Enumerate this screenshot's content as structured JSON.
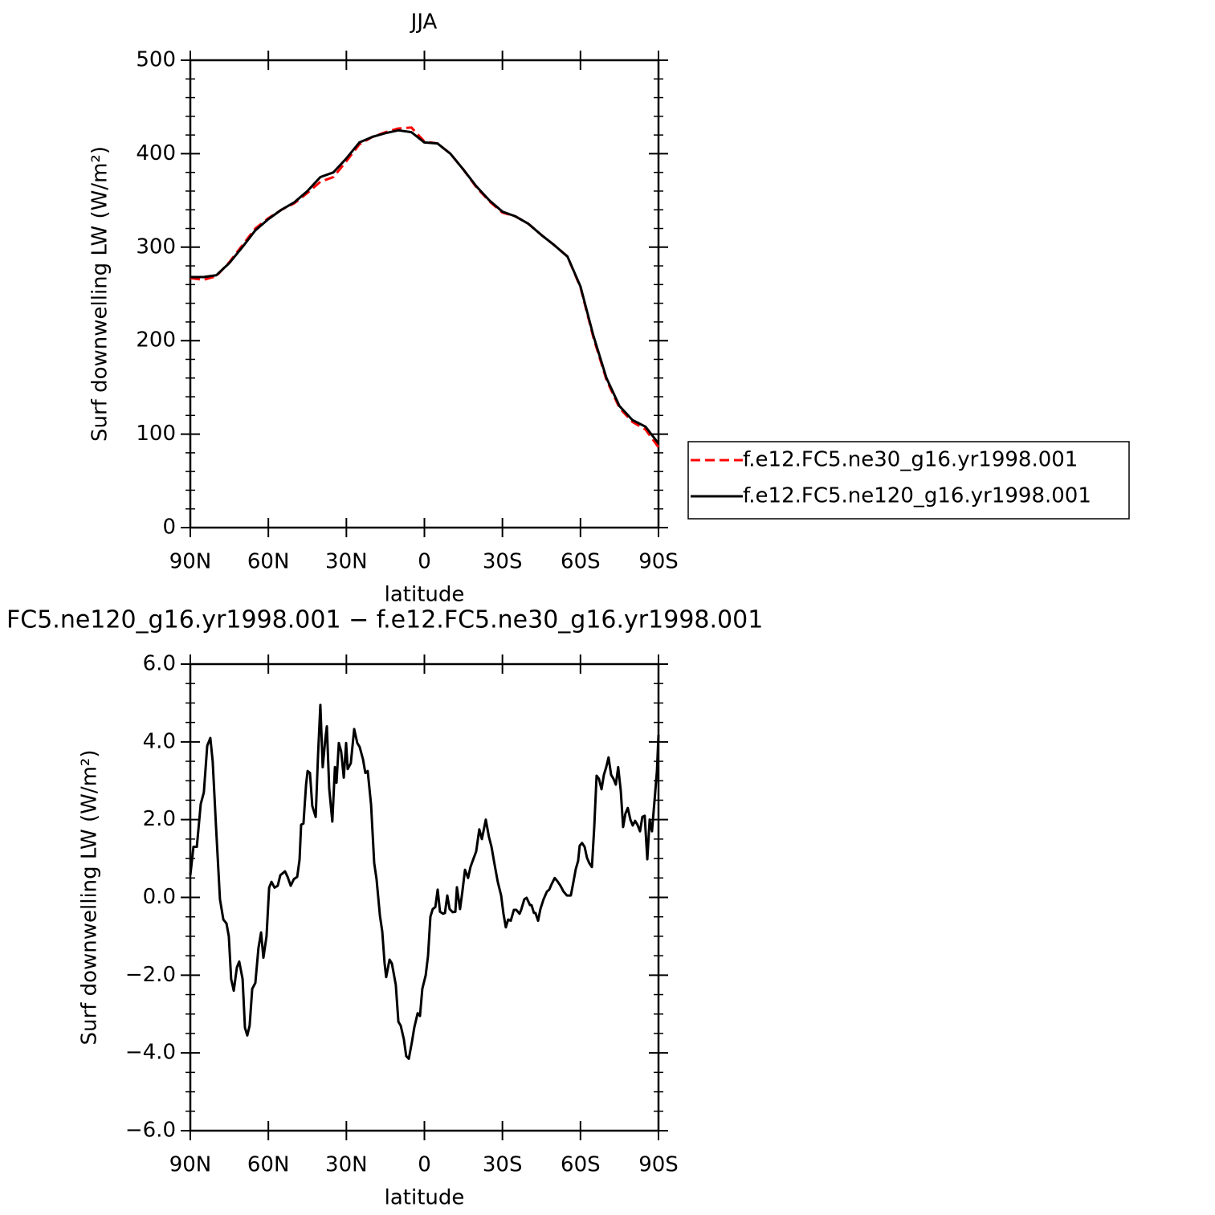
{
  "chart_data": [
    {
      "type": "line",
      "title": "JJA",
      "xlabel": "latitude",
      "ylabel": "Surf downwelling LW (W/m²)",
      "x": [
        90,
        85,
        80,
        75,
        70,
        65,
        60,
        55,
        50,
        45,
        40,
        35,
        30,
        25,
        20,
        15,
        10,
        5,
        0,
        -5,
        -10,
        -15,
        -20,
        -25,
        -30,
        -35,
        -40,
        -45,
        -50,
        -55,
        -60,
        -65,
        -70,
        -75,
        -80,
        -85,
        -90
      ],
      "xlim": [
        90,
        -90
      ],
      "xticks": [
        {
          "value": 90,
          "label": "90N"
        },
        {
          "value": 60,
          "label": "60N"
        },
        {
          "value": 30,
          "label": "30N"
        },
        0,
        {
          "value": -30,
          "label": "30S"
        },
        {
          "value": -60,
          "label": "60S"
        },
        {
          "value": -90,
          "label": "90S"
        }
      ],
      "ylim": [
        0,
        500
      ],
      "yticks": [
        0,
        100,
        200,
        300,
        400,
        500
      ],
      "yminorticks": [
        20,
        40,
        60,
        80,
        120,
        140,
        160,
        180,
        220,
        240,
        260,
        280,
        320,
        340,
        360,
        380,
        420,
        440,
        460,
        480
      ],
      "legend": "right",
      "series": [
        {
          "name": "f.e12.FC5.ne30_g16.yr1998.001",
          "color": "#ff0000",
          "dash": "dashed",
          "values": [
            267,
            265,
            269,
            284,
            302,
            320,
            331,
            340,
            347,
            358,
            370,
            375,
            392,
            410,
            418,
            423,
            427,
            428,
            413,
            411,
            400,
            383,
            364,
            349,
            337,
            333,
            325,
            313,
            302,
            290,
            257,
            203,
            158,
            128,
            113,
            105,
            86
          ]
        },
        {
          "name": "f.e12.FC5.ne120_g16.yr1998.001",
          "color": "#000000",
          "dash": "solid",
          "values": [
            268,
            268,
            270,
            283,
            300,
            318,
            330,
            340,
            348,
            360,
            375,
            380,
            395,
            412,
            418,
            422,
            425,
            423,
            412,
            411,
            400,
            383,
            365,
            350,
            338,
            333,
            325,
            313,
            302,
            290,
            258,
            205,
            160,
            130,
            115,
            108,
            90
          ]
        }
      ]
    },
    {
      "type": "line",
      "title": "FC5.ne120_g16.yr1998.001 − f.e12.FC5.ne30_g16.yr1998.001",
      "xlabel": "latitude",
      "ylabel": "Surf downwelling LW (W/m²)",
      "x": [
        90.0,
        88.8,
        87.5,
        86.0,
        84.8,
        83.5,
        82.3,
        81.4,
        80.1,
        78.6,
        77.3,
        76.1,
        75.2,
        74.3,
        73.3,
        72.1,
        71.2,
        69.9,
        69.0,
        68.1,
        67.2,
        66.2,
        65.0,
        63.8,
        62.8,
        61.9,
        60.7,
        59.7,
        58.8,
        57.6,
        56.4,
        55.4,
        53.6,
        52.6,
        51.4,
        50.2,
        48.9,
        48.0,
        47.4,
        46.5,
        45.5,
        44.9,
        44.0,
        43.1,
        41.8,
        40.9,
        40.0,
        39.1,
        38.1,
        37.5,
        36.6,
        35.4,
        34.4,
        33.8,
        32.9,
        32.0,
        31.0,
        30.1,
        29.5,
        28.3,
        27.0,
        25.8,
        24.9,
        23.6,
        22.7,
        21.8,
        20.5,
        19.3,
        18.4,
        17.1,
        16.2,
        15.3,
        14.7,
        13.4,
        12.5,
        11.0,
        10.0,
        9.1,
        7.9,
        7.0,
        6.0,
        4.8,
        3.9,
        2.6,
        1.7,
        0.8,
        -0.5,
        -1.4,
        -2.3,
        -3.2,
        -4.2,
        -5.1,
        -6.0,
        -7.2,
        -7.9,
        -8.8,
        -9.7,
        -10.9,
        -11.9,
        -12.5,
        -13.7,
        -14.6,
        -15.6,
        -16.8,
        -17.7,
        -19.0,
        -19.9,
        -21.1,
        -22.1,
        -23.6,
        -24.8,
        -25.8,
        -27.0,
        -28.2,
        -29.5,
        -30.4,
        -31.3,
        -32.2,
        -33.2,
        -34.4,
        -35.3,
        -36.6,
        -37.2,
        -38.4,
        -39.3,
        -40.6,
        -41.2,
        -42.1,
        -42.7,
        -43.7,
        -44.6,
        -45.8,
        -47.1,
        -48.0,
        -48.9,
        -50.1,
        -51.1,
        -52.3,
        -53.5,
        -54.8,
        -56.3,
        -57.3,
        -58.2,
        -59.1,
        -59.7,
        -60.6,
        -61.6,
        -62.5,
        -63.4,
        -64.4,
        -65.3,
        -66.2,
        -67.1,
        -68.1,
        -69.0,
        -69.9,
        -70.8,
        -71.8,
        -72.7,
        -73.6,
        -74.5,
        -75.5,
        -76.4,
        -77.3,
        -78.2,
        -79.2,
        -80.1,
        -81.0,
        -81.9,
        -82.9,
        -83.8,
        -84.7,
        -85.7,
        -86.6,
        -87.5,
        -88.4,
        -89.4,
        -90.0
      ],
      "values": [
        0.57,
        1.3,
        1.3,
        2.4,
        2.7,
        3.9,
        4.1,
        3.5,
        1.8,
        -0.05,
        -0.57,
        -0.67,
        -1.0,
        -2.1,
        -2.4,
        -1.8,
        -1.65,
        -2.1,
        -3.35,
        -3.55,
        -3.3,
        -2.35,
        -2.2,
        -1.3,
        -0.9,
        -1.55,
        -1.0,
        0.25,
        0.4,
        0.25,
        0.3,
        0.57,
        0.67,
        0.53,
        0.3,
        0.47,
        0.53,
        0.97,
        1.87,
        1.9,
        2.9,
        3.25,
        3.2,
        2.35,
        2.07,
        3.65,
        4.95,
        3.35,
        4.07,
        4.4,
        2.8,
        1.95,
        3.35,
        2.95,
        3.97,
        3.75,
        3.08,
        3.97,
        3.3,
        3.45,
        4.33,
        3.97,
        3.87,
        3.55,
        3.2,
        3.25,
        2.38,
        0.88,
        0.47,
        -0.47,
        -0.88,
        -1.7,
        -2.05,
        -1.6,
        -1.7,
        -2.25,
        -3.2,
        -3.3,
        -3.65,
        -4.08,
        -4.15,
        -3.72,
        -3.35,
        -2.98,
        -3.05,
        -2.35,
        -2.0,
        -1.5,
        -0.5,
        -0.3,
        -0.25,
        0.2,
        -0.37,
        -0.42,
        -0.4,
        0.05,
        -0.3,
        -0.38,
        -0.37,
        0.26,
        -0.3,
        0.15,
        0.71,
        0.5,
        0.78,
        1.02,
        1.18,
        1.75,
        1.5,
        2.0,
        1.56,
        1.3,
        0.84,
        0.4,
        0.05,
        -0.42,
        -0.77,
        -0.57,
        -0.6,
        -0.32,
        -0.32,
        -0.42,
        -0.32,
        -0.05,
        -0.01,
        -0.2,
        -0.2,
        -0.4,
        -0.4,
        -0.6,
        -0.3,
        -0.05,
        0.15,
        0.2,
        0.34,
        0.5,
        0.42,
        0.3,
        0.15,
        0.05,
        0.05,
        0.4,
        0.73,
        0.94,
        1.33,
        1.4,
        1.3,
        1.02,
        0.88,
        0.78,
        1.81,
        3.13,
        3.05,
        2.78,
        3.15,
        3.35,
        3.6,
        3.15,
        3.05,
        2.9,
        3.35,
        2.74,
        1.81,
        2.16,
        2.3,
        2.0,
        1.85,
        1.97,
        1.87,
        1.7,
        2.07,
        2.1,
        0.98,
        2.0,
        1.7,
        2.43,
        3.25,
        4.18
      ],
      "color": "#000000",
      "xlim": [
        90,
        -90
      ],
      "xticks": [
        {
          "value": 90,
          "label": "90N"
        },
        {
          "value": 60,
          "label": "60N"
        },
        {
          "value": 30,
          "label": "30N"
        },
        0,
        {
          "value": -30,
          "label": "30S"
        },
        {
          "value": -60,
          "label": "60S"
        },
        {
          "value": -90,
          "label": "90S"
        }
      ],
      "ylim": [
        -6,
        6
      ],
      "yticks": [
        {
          "value": -6,
          "label": "−6.0"
        },
        {
          "value": -4,
          "label": "−4.0"
        },
        {
          "value": -2,
          "label": "−2.0"
        },
        {
          "value": 0,
          "label": "0.0"
        },
        {
          "value": 2,
          "label": "2.0"
        },
        {
          "value": 4,
          "label": "4.0"
        },
        {
          "value": 6,
          "label": "6.0"
        }
      ],
      "yminorticks": [
        -5.5,
        -5,
        -4.5,
        -3.5,
        -3,
        -2.5,
        -1.5,
        -1,
        -0.5,
        0.5,
        1,
        1.5,
        2.5,
        3,
        3.5,
        4.5,
        5,
        5.5
      ]
    }
  ]
}
